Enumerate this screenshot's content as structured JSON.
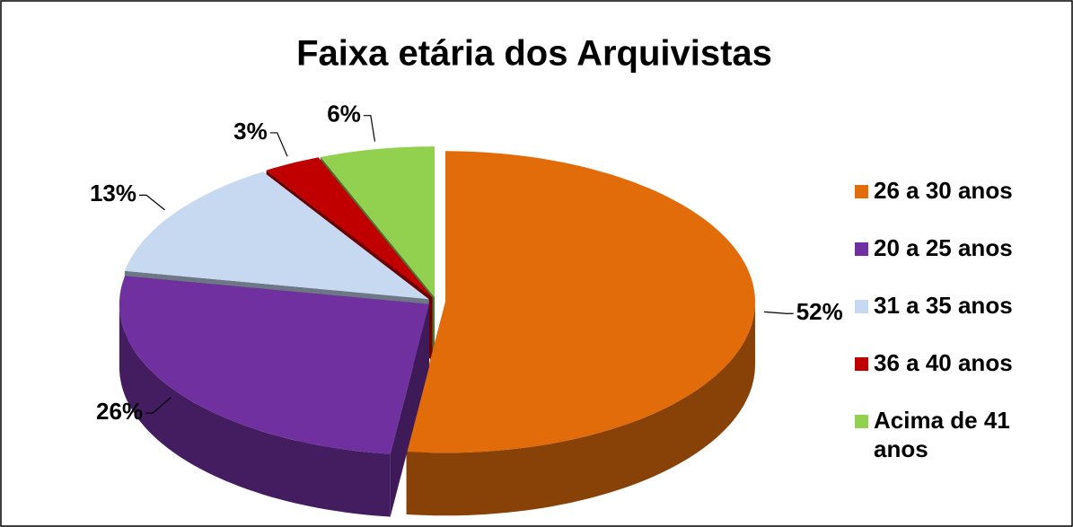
{
  "chart_data": {
    "type": "pie",
    "title": "Faixa etária dos Arquivistas",
    "categories": [
      "26 a 30 anos",
      "20 a 25 anos",
      "31 a 35 anos",
      "36 a 40 anos",
      "Acima de 41 anos"
    ],
    "values": [
      52,
      26,
      13,
      3,
      6
    ],
    "value_labels": [
      "52%",
      "26%",
      "13%",
      "3%",
      "6%"
    ],
    "colors": [
      "#e36c0a",
      "#7030a0",
      "#c6d9f1",
      "#c00000",
      "#92d050"
    ],
    "legend": "right"
  }
}
